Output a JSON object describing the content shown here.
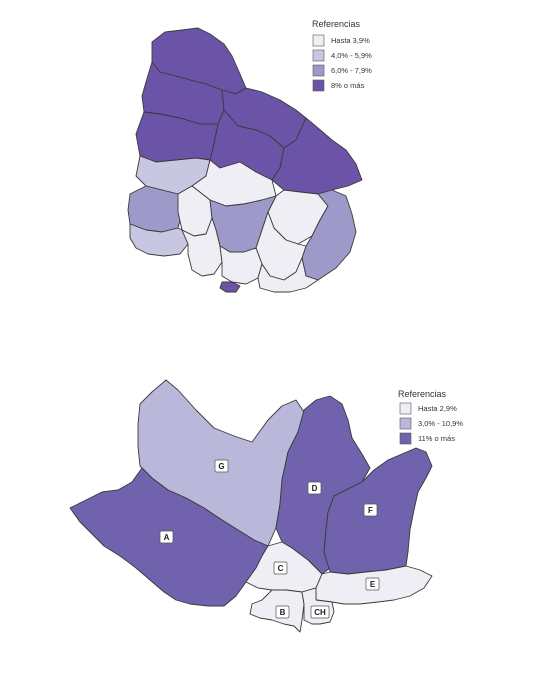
{
  "map1": {
    "legend": {
      "title": "Referencias",
      "items": [
        {
          "label": "Hasta 3,9%",
          "color": "#efeef5"
        },
        {
          "label": "4,0% - 5,9%",
          "color": "#c8c7e1"
        },
        {
          "label": "6,0% - 7,9%",
          "color": "#9d99c9"
        },
        {
          "label": "8% o más",
          "color": "#6b54a8"
        }
      ]
    }
  },
  "map2": {
    "legend": {
      "title": "Referencias",
      "items": [
        {
          "label": "Hasta 2,9%",
          "color": "#efeef5"
        },
        {
          "label": "3,0% - 10,9%",
          "color": "#b9b8db"
        },
        {
          "label": "11% o más",
          "color": "#7162ae"
        }
      ]
    },
    "zones": {
      "A": {
        "label": "A",
        "class": 3
      },
      "G": {
        "label": "G",
        "class": 2
      },
      "D": {
        "label": "D",
        "class": 3
      },
      "F": {
        "label": "F",
        "class": 3
      },
      "C": {
        "label": "C",
        "class": 1
      },
      "E": {
        "label": "E",
        "class": 1
      },
      "B": {
        "label": "B",
        "class": 1
      },
      "CH": {
        "label": "CH",
        "class": 1
      }
    }
  }
}
